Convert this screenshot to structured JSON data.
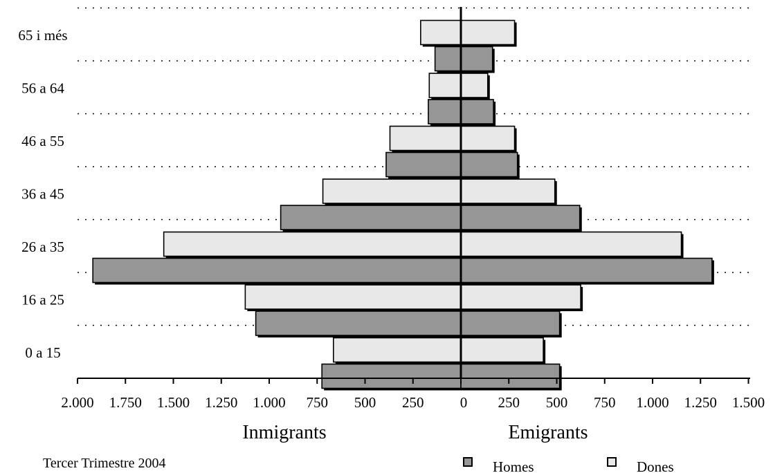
{
  "chart_data": {
    "type": "bar",
    "orientation": "horizontal",
    "layout": "population-pyramid",
    "categories": [
      "0 a 15",
      "16 a 25",
      "26 a 35",
      "36 a 45",
      "46 a 55",
      "56 a 64",
      "65 i més"
    ],
    "sides": [
      {
        "label": "Inmigrants",
        "series": [
          {
            "name": "Homes",
            "values": [
              725,
              1070,
              1920,
              940,
              390,
              170,
              135
            ]
          },
          {
            "name": "Dones",
            "values": [
              665,
              1125,
              1550,
              720,
              370,
              165,
              210
            ]
          }
        ]
      },
      {
        "label": "Emigrants",
        "series": [
          {
            "name": "Homes",
            "values": [
              515,
              515,
              1310,
              620,
              295,
              170,
              165
            ]
          },
          {
            "name": "Dones",
            "values": [
              430,
              625,
              1150,
              490,
              280,
              140,
              280
            ]
          }
        ]
      }
    ],
    "x_left_range": [
      0,
      2000
    ],
    "x_right_range": [
      0,
      1500
    ],
    "x_tick_values_left": [
      2000,
      1750,
      1500,
      1250,
      1000,
      750,
      500,
      250
    ],
    "x_tick_labels_left": [
      "2.000",
      "1.750",
      "1.500",
      "1.250",
      "1.000",
      "750",
      "500",
      "250"
    ],
    "x_tick_values_right": [
      0,
      250,
      500,
      750,
      1000,
      1250,
      1500
    ],
    "x_tick_labels_right": [
      "0",
      "250",
      "500",
      "750",
      "1.000",
      "1.250",
      "1.500"
    ],
    "grid": "dotted horizontal separators between age groups",
    "legend": {
      "position": "bottom-right",
      "items": [
        {
          "name": "Homes",
          "color": "#969696"
        },
        {
          "name": "Dones",
          "color": "#e8e8e8"
        }
      ]
    },
    "colors": {
      "Homes": "#969696",
      "Dones": "#e8e8e8"
    },
    "footer": "Tercer Trimestre 2004"
  }
}
